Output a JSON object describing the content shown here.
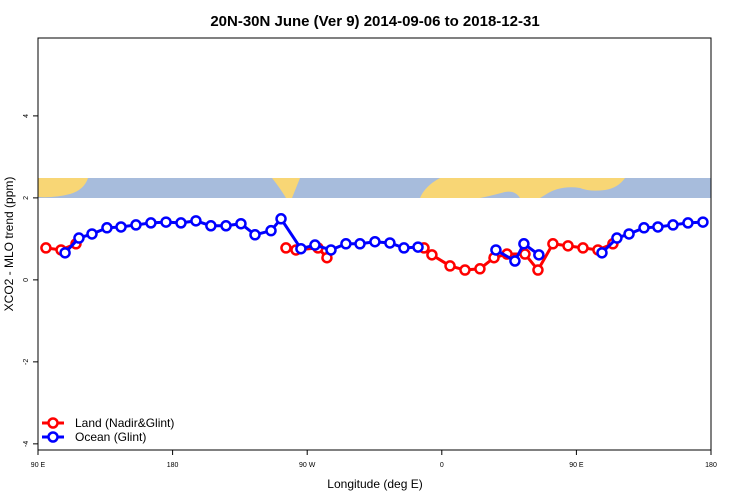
{
  "chart_data": {
    "type": "line",
    "title": "20N-30N June (Ver 9)   2014-09-06 to 2018-12-31",
    "xlabel": "Longitude (deg E)",
    "ylabel": "XCO2 - MLO trend (ppm)",
    "xlim": [
      90,
      540
    ],
    "ylim": [
      -4.15,
      5.9
    ],
    "xticks": [
      {
        "value": 90,
        "label": "90 E"
      },
      180,
      {
        "value": 270,
        "label": "90 W"
      },
      {
        "value": 360,
        "label": "0"
      },
      {
        "value": 450,
        "label": "90 E"
      },
      {
        "value": 540,
        "label": "180"
      }
    ],
    "yticks": [
      -4,
      -2,
      0,
      2,
      4
    ],
    "legend": "bottom-left",
    "series": [
      {
        "name": "Land (Nadir&Glint)",
        "color": "#ff0000",
        "x": [
          95.3,
          105.4,
          115.4,
          null,
          255.8,
          262.5,
          277.2,
          283.2,
          null,
          348.1,
          353.4,
          365.5,
          375.5,
          385.5,
          394.9,
          403.6,
          415.6,
          424.3,
          434.3,
          444.4,
          454.4,
          464.4,
          474.4
        ],
        "values": [
          0.78,
          0.73,
          0.88,
          null,
          0.78,
          0.73,
          0.78,
          0.54,
          null,
          0.78,
          0.61,
          0.34,
          0.24,
          0.27,
          0.54,
          0.63,
          0.63,
          0.24,
          0.88,
          0.83,
          0.78,
          0.73,
          0.88
        ]
      },
      {
        "name": "Ocean (Glint)",
        "color": "#0000ff",
        "x": [
          108.1,
          117.4,
          126.1,
          136.1,
          145.5,
          155.5,
          165.5,
          175.6,
          185.6,
          195.6,
          205.6,
          215.7,
          225.7,
          235.1,
          245.8,
          252.5,
          265.8,
          275.2,
          285.9,
          295.9,
          305.3,
          315.3,
          325.3,
          334.7,
          344.1,
          null,
          396.2,
          408.9,
          414.9,
          424.9,
          null,
          467.1,
          477.1,
          485.2,
          495.2,
          504.5,
          514.6,
          524.6,
          534.6
        ],
        "values": [
          0.66,
          1.02,
          1.12,
          1.27,
          1.29,
          1.34,
          1.39,
          1.41,
          1.39,
          1.44,
          1.32,
          1.32,
          1.37,
          1.1,
          1.2,
          1.49,
          0.76,
          0.85,
          0.73,
          0.88,
          0.88,
          0.93,
          0.9,
          0.78,
          0.8,
          null,
          0.73,
          0.46,
          0.88,
          0.61,
          null,
          0.66,
          1.02,
          1.12,
          1.27,
          1.29,
          1.34,
          1.39,
          1.41
        ]
      }
    ]
  }
}
